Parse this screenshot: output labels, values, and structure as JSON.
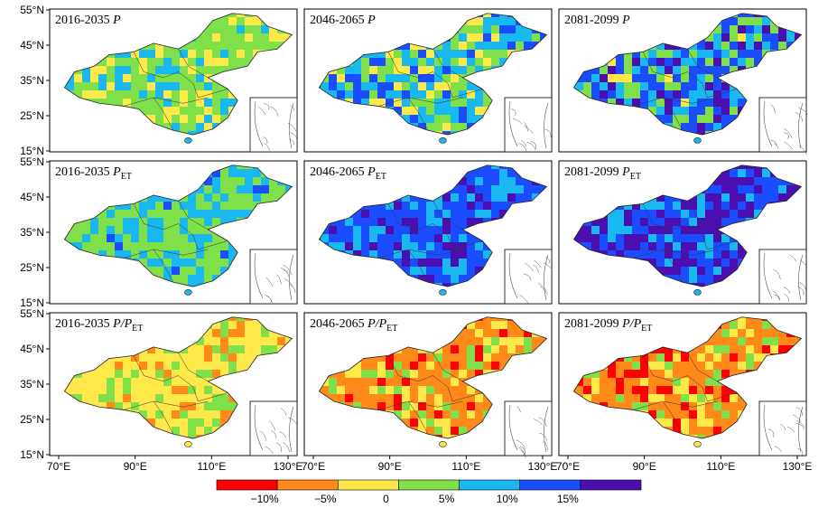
{
  "colors": [
    "#ff0000",
    "#ff8a1a",
    "#ffe94a",
    "#7fe04a",
    "#1ab8f0",
    "#1a4dff",
    "#4b0fb0"
  ],
  "colors_semantic": [
    "dry-strong",
    "dry",
    "slight-dry",
    "slight-wet",
    "wet",
    "wetter",
    "wettest"
  ],
  "panels": [
    {
      "id": "p-2016",
      "period": "2016-2035",
      "var": "P",
      "sub": "",
      "frac": false,
      "base": 3,
      "dist": [
        0,
        0,
        0.25,
        0.55,
        0.2,
        0,
        0
      ],
      "seed": 11
    },
    {
      "id": "p-2046",
      "period": "2046-2065",
      "var": "P",
      "sub": "",
      "frac": false,
      "base": 4,
      "dist": [
        0,
        0,
        0.15,
        0.3,
        0.35,
        0.2,
        0
      ],
      "seed": 22
    },
    {
      "id": "p-2081",
      "period": "2081-2099",
      "var": "P",
      "sub": "",
      "frac": false,
      "base": 5,
      "dist": [
        0,
        0,
        0.05,
        0.2,
        0.25,
        0.35,
        0.15
      ],
      "seed": 33
    },
    {
      "id": "pet-2016",
      "period": "2016-2035",
      "var": "P",
      "sub": "ET",
      "frac": false,
      "base": 3,
      "dist": [
        0,
        0,
        0,
        0.55,
        0.4,
        0.05,
        0
      ],
      "seed": 44
    },
    {
      "id": "pet-2046",
      "period": "2046-2065",
      "var": "P",
      "sub": "ET",
      "frac": false,
      "base": 5,
      "dist": [
        0,
        0,
        0,
        0,
        0.25,
        0.55,
        0.2
      ],
      "seed": 55
    },
    {
      "id": "pet-2081",
      "period": "2081-2099",
      "var": "P",
      "sub": "ET",
      "frac": false,
      "base": 6,
      "dist": [
        0,
        0,
        0,
        0,
        0.15,
        0.35,
        0.5
      ],
      "seed": 66
    },
    {
      "id": "ppet-2016",
      "period": "2016-2035",
      "var": "P/P",
      "sub": "ET",
      "frac": true,
      "base": 2,
      "dist": [
        0,
        0.15,
        0.6,
        0.25,
        0,
        0,
        0
      ],
      "seed": 77
    },
    {
      "id": "ppet-2046",
      "period": "2046-2065",
      "var": "P/P",
      "sub": "ET",
      "frac": true,
      "base": 1,
      "dist": [
        0.15,
        0.5,
        0.25,
        0.1,
        0,
        0,
        0
      ],
      "seed": 88
    },
    {
      "id": "ppet-2081",
      "period": "2081-2099",
      "var": "P/P",
      "sub": "ET",
      "frac": true,
      "base": 1,
      "dist": [
        0.2,
        0.45,
        0.2,
        0.15,
        0,
        0,
        0
      ],
      "seed": 99
    }
  ],
  "row_ticks": [
    [
      "55°N",
      "45°N",
      "35°N",
      "25°N",
      "15°N"
    ],
    [
      "55°N",
      "45°N",
      "35°N",
      "25°N",
      "15°N"
    ],
    [
      "55°N",
      "45°N",
      "35°N",
      "25°N",
      "15°N"
    ]
  ],
  "x_ticks": [
    [
      "70°E",
      "90°E",
      "110°E",
      "130°E"
    ],
    [
      "70°E",
      "90°E",
      "110°E",
      "130°E"
    ],
    [
      "70°E",
      "90°E",
      "110°E",
      "130°E"
    ]
  ],
  "colorbar": {
    "labels": [
      "−10%",
      "−5%",
      "0",
      "5%",
      "10%",
      "15%"
    ]
  }
}
